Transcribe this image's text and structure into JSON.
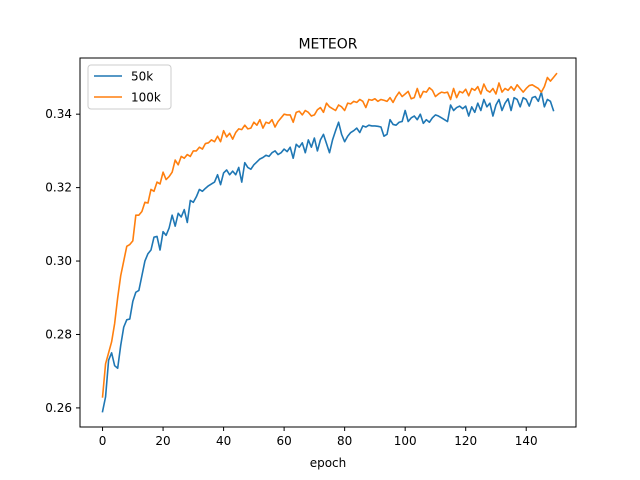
{
  "chart_data": {
    "type": "line",
    "title": "METEOR",
    "xlabel": "epoch",
    "ylabel": "",
    "xlim": [
      -7.45,
      156.45
    ],
    "ylim": [
      0.2548,
      0.3553
    ],
    "xticks": [
      0,
      20,
      40,
      60,
      80,
      100,
      120,
      140
    ],
    "yticks": [
      0.26,
      0.28,
      0.3,
      0.32,
      0.34
    ],
    "ytick_labels": [
      "0.26",
      "0.28",
      "0.30",
      "0.32",
      "0.34"
    ],
    "grid": false,
    "legend_position": "top-left",
    "colors": {
      "50k": "#1f77b4",
      "100k": "#ff7f0e"
    },
    "series": [
      {
        "name": "50k",
        "x_start": 0,
        "values": [
          0.259,
          0.263,
          0.273,
          0.275,
          0.2715,
          0.2708,
          0.277,
          0.282,
          0.284,
          0.2842,
          0.289,
          0.2915,
          0.292,
          0.296,
          0.3,
          0.302,
          0.303,
          0.3065,
          0.3067,
          0.303,
          0.308,
          0.307,
          0.309,
          0.3125,
          0.3095,
          0.313,
          0.312,
          0.314,
          0.3105,
          0.3165,
          0.316,
          0.3175,
          0.3195,
          0.319,
          0.3198,
          0.3205,
          0.321,
          0.3215,
          0.3235,
          0.3208,
          0.324,
          0.3248,
          0.3235,
          0.3245,
          0.3235,
          0.3255,
          0.3215,
          0.3268,
          0.3255,
          0.325,
          0.3262,
          0.327,
          0.3278,
          0.3282,
          0.3288,
          0.3285,
          0.3295,
          0.33,
          0.329,
          0.3295,
          0.3305,
          0.3298,
          0.331,
          0.328,
          0.3318,
          0.331,
          0.3322,
          0.3295,
          0.333,
          0.331,
          0.3335,
          0.33,
          0.333,
          0.3345,
          0.332,
          0.3295,
          0.333,
          0.3355,
          0.3378,
          0.3345,
          0.3325,
          0.334,
          0.335,
          0.3355,
          0.3362,
          0.335,
          0.3368,
          0.3365,
          0.337,
          0.3368,
          0.3368,
          0.3367,
          0.3365,
          0.334,
          0.3345,
          0.3385,
          0.3372,
          0.337,
          0.3378,
          0.338,
          0.341,
          0.338,
          0.339,
          0.3395,
          0.3385,
          0.34,
          0.3375,
          0.3385,
          0.3378,
          0.339,
          0.3398,
          0.3395,
          0.339,
          0.3385,
          0.338,
          0.3425,
          0.341,
          0.3418,
          0.3422,
          0.3415,
          0.3422,
          0.3395,
          0.342,
          0.3405,
          0.343,
          0.341,
          0.344,
          0.342,
          0.343,
          0.3395,
          0.3425,
          0.344,
          0.341,
          0.343,
          0.3442,
          0.341,
          0.3445,
          0.344,
          0.342,
          0.3445,
          0.344,
          0.3422,
          0.3445,
          0.3448,
          0.3435,
          0.346,
          0.342,
          0.344,
          0.3435,
          0.341
        ]
      },
      {
        "name": "100k",
        "x_start": 0,
        "values": [
          0.263,
          0.272,
          0.275,
          0.278,
          0.283,
          0.29,
          0.296,
          0.3,
          0.304,
          0.3045,
          0.3055,
          0.3125,
          0.3125,
          0.3135,
          0.316,
          0.3158,
          0.3195,
          0.319,
          0.3215,
          0.321,
          0.3242,
          0.3222,
          0.323,
          0.3242,
          0.3275,
          0.3262,
          0.3285,
          0.328,
          0.329,
          0.3285,
          0.33,
          0.33,
          0.331,
          0.3305,
          0.332,
          0.3322,
          0.333,
          0.3325,
          0.334,
          0.3325,
          0.3355,
          0.3338,
          0.3348,
          0.3332,
          0.335,
          0.336,
          0.3358,
          0.337,
          0.336,
          0.3362,
          0.3378,
          0.337,
          0.3385,
          0.3362,
          0.3378,
          0.3375,
          0.3385,
          0.3365,
          0.338,
          0.339,
          0.34,
          0.3398,
          0.3398,
          0.3378,
          0.3405,
          0.3408,
          0.3398,
          0.341,
          0.3405,
          0.3395,
          0.3398,
          0.3412,
          0.3418,
          0.3405,
          0.343,
          0.342,
          0.3415,
          0.341,
          0.3425,
          0.342,
          0.341,
          0.343,
          0.3428,
          0.3435,
          0.3432,
          0.344,
          0.3435,
          0.3418,
          0.344,
          0.3438,
          0.3442,
          0.3435,
          0.344,
          0.3438,
          0.3435,
          0.3445,
          0.3432,
          0.3448,
          0.346,
          0.3448,
          0.3455,
          0.3462,
          0.3442,
          0.3445,
          0.347,
          0.3445,
          0.3462,
          0.346,
          0.3472,
          0.3465,
          0.3448,
          0.3455,
          0.346,
          0.3458,
          0.346,
          0.344,
          0.347,
          0.3445,
          0.3462,
          0.3458,
          0.3468,
          0.345,
          0.347,
          0.3465,
          0.3475,
          0.3455,
          0.3482,
          0.3465,
          0.346,
          0.347,
          0.3455,
          0.3485,
          0.346,
          0.347,
          0.3465,
          0.3475,
          0.3465,
          0.348,
          0.347,
          0.346,
          0.347,
          0.3478,
          0.348,
          0.3475,
          0.347,
          0.346,
          0.3475,
          0.35,
          0.349,
          0.35,
          0.351
        ]
      }
    ]
  }
}
